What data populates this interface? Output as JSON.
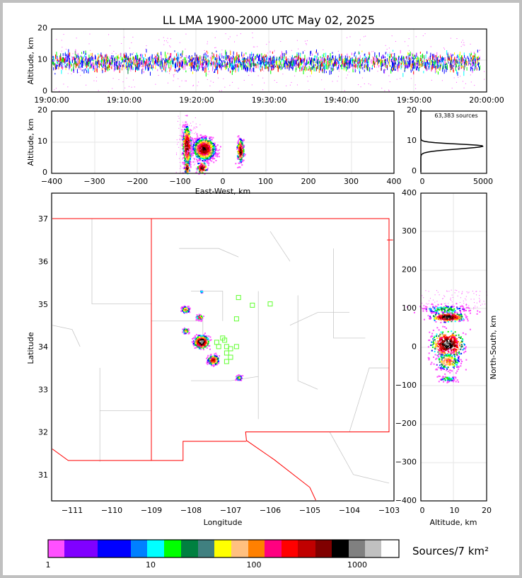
{
  "chart_data": [
    {
      "type": "scatter",
      "title": "LL LMA 1900-2000 UTC May 02, 2025",
      "xlabel": "",
      "ylabel": "Altitude, km",
      "x_ticks": [
        "19:00:00",
        "19:10:00",
        "19:20:00",
        "19:30:00",
        "19:40:00",
        "19:50:00",
        "20:00:00"
      ],
      "ylim": [
        0,
        20
      ],
      "y_ticks": [
        "0",
        "10",
        "20"
      ],
      "grid": true
    },
    {
      "type": "heatmap",
      "xlabel": "East-West, km",
      "ylabel": "Altitude, km",
      "xlim": [
        -400,
        400
      ],
      "ylim": [
        0,
        20
      ],
      "x_ticks": [
        "−400",
        "−300",
        "−200",
        "−100",
        "0",
        "100",
        "200",
        "300",
        "400"
      ],
      "y_ticks": [
        "0",
        "10",
        "20"
      ]
    },
    {
      "type": "line",
      "annotation": "63,383 sources",
      "xlim": [
        0,
        5000
      ],
      "ylim": [
        0,
        20
      ],
      "x_ticks": [
        "0",
        "5000"
      ],
      "y_ticks": [
        "0",
        "10",
        "20"
      ],
      "peak_altitude_km": 8.3,
      "peak_count": 5000
    },
    {
      "type": "heatmap",
      "xlabel": "Longitude",
      "ylabel": "Latitude",
      "xlim": [
        -111.5,
        -102.9
      ],
      "ylim": [
        30.4,
        37.6
      ],
      "x_ticks": [
        "−111",
        "−110",
        "−109",
        "−108",
        "−107",
        "−106",
        "−105",
        "−104",
        "−103"
      ],
      "y_ticks": [
        "31",
        "32",
        "33",
        "34",
        "35",
        "36",
        "37"
      ],
      "stations": [
        [
          -106.8,
          35.15
        ],
        [
          -106.45,
          34.97
        ],
        [
          -106.0,
          35.0
        ],
        [
          -106.85,
          34.65
        ],
        [
          -107.15,
          34.15
        ],
        [
          -107.3,
          34.0
        ],
        [
          -107.1,
          34.0
        ],
        [
          -107.0,
          33.95
        ],
        [
          -107.1,
          33.85
        ],
        [
          -107.1,
          33.65
        ],
        [
          -106.85,
          34.0
        ],
        [
          -107.35,
          34.1
        ],
        [
          -107.2,
          34.2
        ],
        [
          -107.0,
          33.75
        ]
      ]
    },
    {
      "type": "heatmap",
      "xlabel": "Altitude, km",
      "ylabel": "North-South, km",
      "xlim": [
        0,
        20
      ],
      "ylim": [
        -400,
        400
      ],
      "x_ticks": [
        "0",
        "10",
        "20"
      ],
      "y_ticks": [
        "−400",
        "−300",
        "−200",
        "−100",
        "0",
        "100",
        "200",
        "300",
        "400"
      ]
    }
  ],
  "colorbar": {
    "label": "Sources/7 km²",
    "ticks": [
      "1",
      "10",
      "100",
      "1000"
    ],
    "colors": [
      "#ff50ff",
      "#8000ff",
      "#0000ff",
      "#0080ff",
      "#00ffff",
      "#00ff00",
      "#008040",
      "#408080",
      "#ffff00",
      "#ffc080",
      "#ff8000",
      "#ff0080",
      "#ff0000",
      "#c00000",
      "#800000",
      "#000000",
      "#808080",
      "#c0c0c0",
      "#ffffff"
    ]
  }
}
